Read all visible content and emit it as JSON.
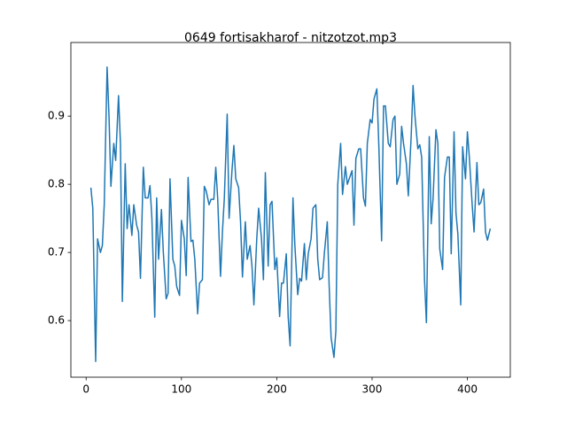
{
  "chart_data": {
    "type": "line",
    "title": "0649 fortisakharof - nitzotzot.mp3",
    "x": [
      5,
      7,
      10,
      12,
      15,
      17,
      19,
      22,
      24,
      26,
      29,
      31,
      34,
      36,
      38,
      41,
      43,
      45,
      48,
      50,
      53,
      55,
      57,
      60,
      62,
      65,
      67,
      69,
      72,
      74,
      76,
      79,
      81,
      84,
      86,
      88,
      91,
      93,
      95,
      98,
      100,
      103,
      105,
      107,
      110,
      112,
      114,
      117,
      119,
      122,
      124,
      126,
      129,
      131,
      134,
      136,
      138,
      141,
      143,
      145,
      148,
      150,
      153,
      155,
      157,
      160,
      162,
      164,
      167,
      169,
      172,
      174,
      176,
      179,
      181,
      184,
      186,
      188,
      191,
      193,
      195,
      198,
      200,
      203,
      205,
      207,
      210,
      212,
      214,
      217,
      219,
      222,
      224,
      226,
      229,
      231,
      233,
      236,
      238,
      241,
      243,
      245,
      248,
      250,
      253,
      255,
      257,
      260,
      262,
      264,
      267,
      269,
      272,
      274,
      276,
      279,
      281,
      283,
      286,
      288,
      291,
      293,
      295,
      298,
      300,
      302,
      305,
      307,
      310,
      312,
      314,
      317,
      319,
      322,
      324,
      326,
      329,
      331,
      333,
      336,
      338,
      341,
      343,
      345,
      348,
      350,
      352,
      355,
      357,
      360,
      362,
      364,
      367,
      369,
      371,
      374,
      376,
      379,
      381,
      383,
      386,
      388,
      390,
      393,
      395,
      398,
      400,
      402,
      405,
      407,
      410,
      412,
      414,
      417,
      419,
      421,
      424
    ],
    "series": [
      {
        "color": "#1f77b4",
        "values": [
          0.795,
          0.765,
          0.54,
          0.72,
          0.7,
          0.71,
          0.77,
          0.972,
          0.9,
          0.797,
          0.86,
          0.835,
          0.93,
          0.86,
          0.628,
          0.83,
          0.735,
          0.77,
          0.725,
          0.77,
          0.74,
          0.73,
          0.662,
          0.825,
          0.78,
          0.78,
          0.798,
          0.75,
          0.605,
          0.78,
          0.69,
          0.763,
          0.7,
          0.632,
          0.64,
          0.808,
          0.69,
          0.68,
          0.65,
          0.637,
          0.747,
          0.72,
          0.666,
          0.81,
          0.716,
          0.718,
          0.69,
          0.61,
          0.655,
          0.66,
          0.797,
          0.79,
          0.77,
          0.778,
          0.778,
          0.825,
          0.78,
          0.665,
          0.73,
          0.78,
          0.903,
          0.75,
          0.82,
          0.857,
          0.808,
          0.795,
          0.745,
          0.664,
          0.745,
          0.69,
          0.71,
          0.68,
          0.623,
          0.72,
          0.765,
          0.72,
          0.66,
          0.817,
          0.68,
          0.77,
          0.775,
          0.675,
          0.692,
          0.606,
          0.655,
          0.655,
          0.698,
          0.605,
          0.563,
          0.78,
          0.71,
          0.638,
          0.662,
          0.658,
          0.713,
          0.66,
          0.698,
          0.72,
          0.765,
          0.77,
          0.69,
          0.66,
          0.663,
          0.7,
          0.745,
          0.65,
          0.575,
          0.546,
          0.585,
          0.8,
          0.86,
          0.785,
          0.826,
          0.8,
          0.808,
          0.82,
          0.74,
          0.838,
          0.852,
          0.852,
          0.78,
          0.768,
          0.86,
          0.895,
          0.89,
          0.925,
          0.94,
          0.86,
          0.717,
          0.915,
          0.915,
          0.86,
          0.855,
          0.895,
          0.9,
          0.8,
          0.815,
          0.885,
          0.86,
          0.83,
          0.783,
          0.87,
          0.945,
          0.9,
          0.852,
          0.858,
          0.84,
          0.66,
          0.597,
          0.87,
          0.742,
          0.78,
          0.88,
          0.86,
          0.705,
          0.675,
          0.81,
          0.84,
          0.84,
          0.698,
          0.877,
          0.758,
          0.727,
          0.623,
          0.855,
          0.808,
          0.877,
          0.84,
          0.77,
          0.73,
          0.832,
          0.77,
          0.773,
          0.793,
          0.73,
          0.718,
          0.735
        ]
      }
    ],
    "xlim": [
      -16,
      445
    ],
    "ylim": [
      0.517,
      1.008
    ],
    "xticks": [
      0,
      100,
      200,
      300,
      400
    ],
    "yticks": [
      0.6,
      0.7,
      0.8,
      0.9
    ]
  }
}
